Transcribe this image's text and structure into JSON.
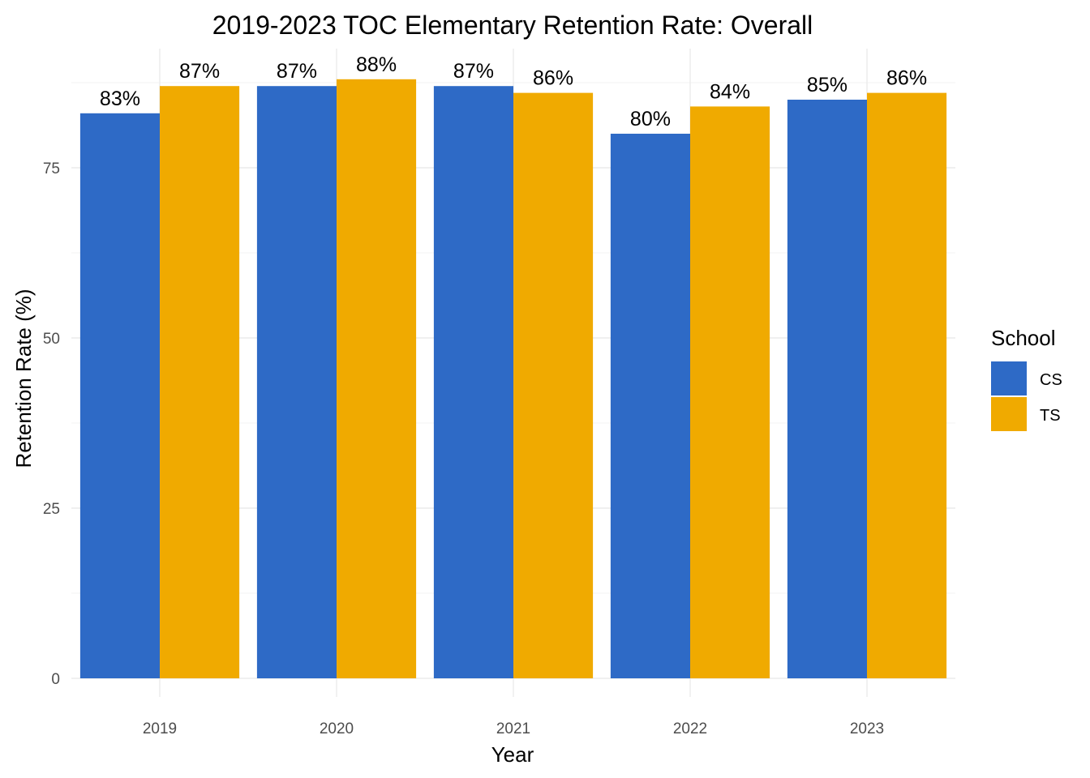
{
  "chart_data": {
    "type": "bar",
    "title": "2019-2023 TOC Elementary Retention Rate: Overall",
    "xlabel": "Year",
    "ylabel": "Retention Rate (%)",
    "categories": [
      "2019",
      "2020",
      "2021",
      "2022",
      "2023"
    ],
    "series": [
      {
        "name": "CS",
        "color": "#2E6AC6",
        "values": [
          83,
          87,
          87,
          80,
          85
        ],
        "labels": [
          "83%",
          "87%",
          "87%",
          "80%",
          "85%"
        ]
      },
      {
        "name": "TS",
        "color": "#F0AA00",
        "values": [
          87,
          88,
          86,
          84,
          86
        ],
        "labels": [
          "87%",
          "88%",
          "86%",
          "84%",
          "86%"
        ]
      }
    ],
    "yticks": [
      0,
      25,
      50,
      75
    ],
    "ylim": [
      0,
      88
    ],
    "grid": true,
    "legend": {
      "title": "School",
      "position": "right"
    }
  }
}
